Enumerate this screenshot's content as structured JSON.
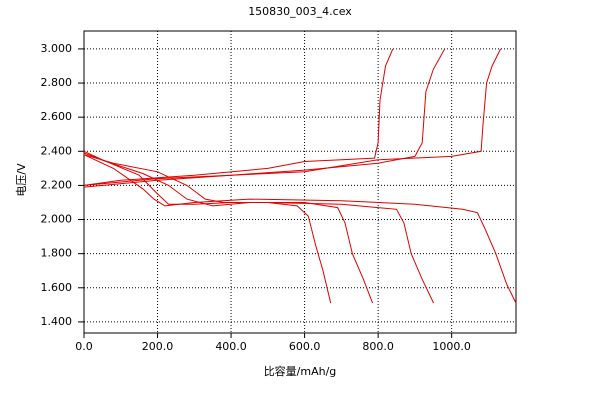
{
  "chart_data": {
    "type": "line",
    "title": "150830_003_4.cex",
    "x_label": "比容量/mAh/g",
    "y_label": "电压/V",
    "xlim": [
      0,
      1175
    ],
    "ylim": [
      1.335,
      3.105
    ],
    "xticks": [
      {
        "value": 0,
        "label": "0.0"
      },
      {
        "value": 200,
        "label": "200.0"
      },
      {
        "value": 400,
        "label": "400.0"
      },
      {
        "value": 600,
        "label": "600.0"
      },
      {
        "value": 800,
        "label": "800.0"
      },
      {
        "value": 1000,
        "label": "1000.0"
      }
    ],
    "yticks": [
      {
        "value": 1.4,
        "label": "1.400"
      },
      {
        "value": 1.6,
        "label": "1.600"
      },
      {
        "value": 1.8,
        "label": "1.800"
      },
      {
        "value": 2.0,
        "label": "2.000"
      },
      {
        "value": 2.2,
        "label": "2.200"
      },
      {
        "value": 2.4,
        "label": "2.400"
      },
      {
        "value": 2.6,
        "label": "2.600"
      },
      {
        "value": 2.8,
        "label": "2.800"
      },
      {
        "value": 3.0,
        "label": "3.000"
      }
    ],
    "grid": true,
    "series": [
      {
        "color": "#e00000",
        "x": [
          0,
          50,
          150,
          200,
          230,
          300,
          400,
          500,
          580,
          610,
          630,
          650,
          671
        ],
        "values": [
          2.4,
          2.35,
          2.26,
          2.15,
          2.09,
          2.09,
          2.1,
          2.1,
          2.08,
          2.02,
          1.85,
          1.7,
          1.51
        ]
      },
      {
        "color": "#e00000",
        "x": [
          0,
          60,
          160,
          230,
          280,
          350,
          450,
          600,
          690,
          710,
          730,
          760,
          785
        ],
        "values": [
          2.39,
          2.34,
          2.27,
          2.2,
          2.12,
          2.08,
          2.1,
          2.1,
          2.07,
          1.98,
          1.8,
          1.65,
          1.51
        ]
      },
      {
        "color": "#e00000",
        "x": [
          0,
          80,
          200,
          280,
          330,
          380,
          500,
          700,
          850,
          870,
          890,
          920,
          951
        ],
        "values": [
          2.38,
          2.33,
          2.28,
          2.2,
          2.12,
          2.1,
          2.1,
          2.09,
          2.06,
          1.98,
          1.8,
          1.65,
          1.51
        ]
      },
      {
        "color": "#e00000",
        "x": [
          0,
          80,
          160,
          190,
          220,
          300,
          450,
          700,
          900,
          1030,
          1070,
          1090,
          1120,
          1150,
          1175
        ],
        "values": [
          2.38,
          2.3,
          2.18,
          2.12,
          2.08,
          2.1,
          2.12,
          2.11,
          2.09,
          2.06,
          2.04,
          1.95,
          1.8,
          1.62,
          1.51
        ]
      },
      {
        "color": "#e00000",
        "x": [
          0,
          100,
          300,
          500,
          600,
          700,
          790,
          800,
          805,
          820,
          840
        ],
        "values": [
          2.2,
          2.23,
          2.26,
          2.3,
          2.34,
          2.35,
          2.36,
          2.45,
          2.7,
          2.9,
          3.0
        ]
      },
      {
        "color": "#e00000",
        "x": [
          0,
          200,
          400,
          600,
          800,
          900,
          920,
          930,
          950,
          981
        ],
        "values": [
          2.2,
          2.24,
          2.26,
          2.29,
          2.33,
          2.37,
          2.45,
          2.75,
          2.88,
          3.0
        ]
      },
      {
        "color": "#e00000",
        "x": [
          0,
          200,
          400,
          600,
          800,
          1000,
          1080,
          1085,
          1095,
          1110,
          1133
        ],
        "values": [
          2.19,
          2.23,
          2.26,
          2.28,
          2.35,
          2.37,
          2.4,
          2.55,
          2.8,
          2.9,
          3.0
        ]
      }
    ]
  }
}
